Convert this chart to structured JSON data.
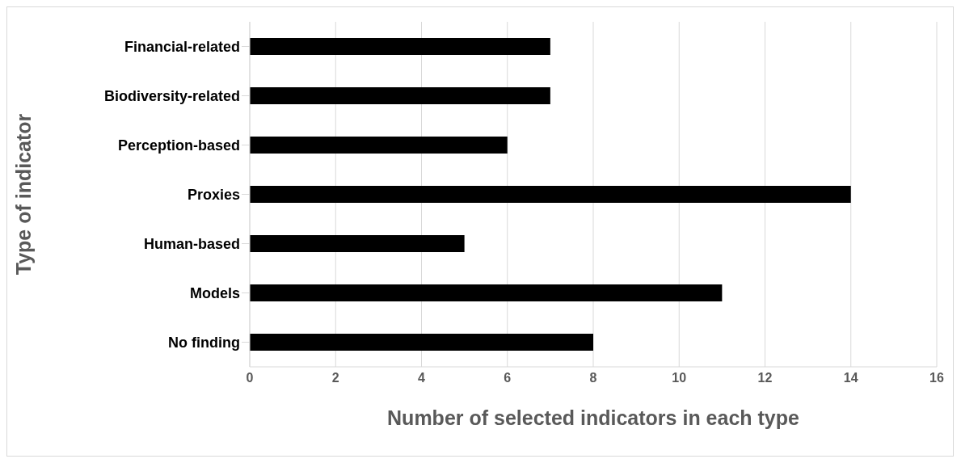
{
  "chart_data": {
    "type": "bar",
    "orientation": "horizontal",
    "xlabel": "Number of selected indicators in each type",
    "ylabel": "Type of indicator",
    "categories": [
      "Financial-related",
      "Biodiversity-related",
      "Perception-based",
      "Proxies",
      "Human-based",
      "Models",
      "No finding"
    ],
    "values": [
      7,
      7,
      6,
      14,
      5,
      11,
      8
    ],
    "color": "#000000",
    "xlim": [
      0,
      16
    ],
    "xticks": [
      0,
      2,
      4,
      6,
      8,
      10,
      12,
      14,
      16
    ],
    "grid": "x",
    "legend": false
  }
}
